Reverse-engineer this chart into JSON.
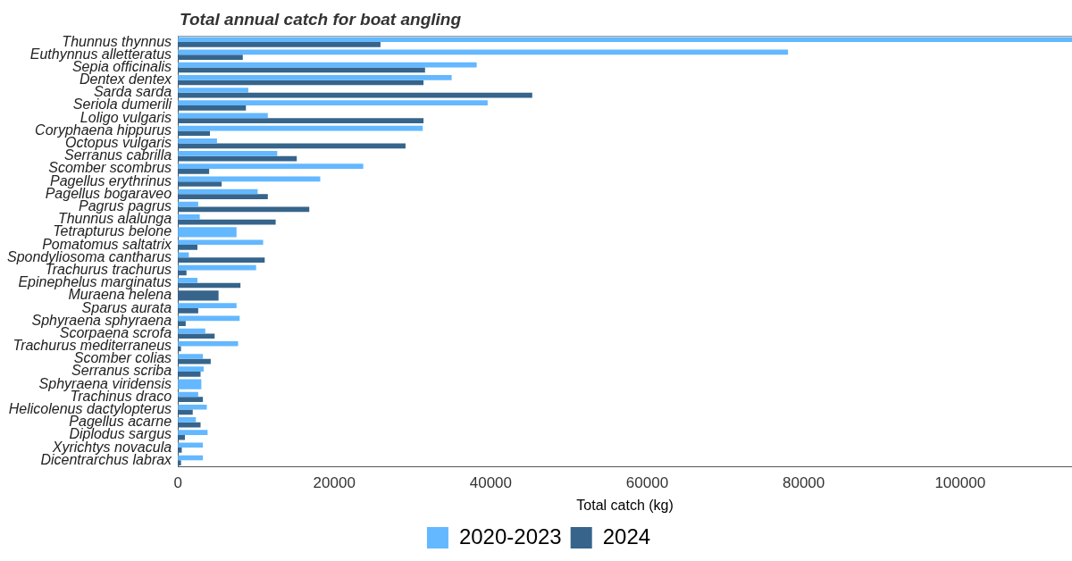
{
  "chart_data": {
    "type": "bar",
    "orientation": "horizontal",
    "title": "Total annual catch for boat angling",
    "xlabel": "Total catch (kg)",
    "categories": [
      "Thunnus thynnus",
      "Euthynnus alletteratus",
      "Sepia officinalis",
      "Dentex dentex",
      "Sarda sarda",
      "Seriola dumerili",
      "Loligo vulgaris",
      "Coryphaena hippurus",
      "Octopus vulgaris",
      "Serranus cabrilla",
      "Scomber scombrus",
      "Pagellus erythrinus",
      "Pagellus bogaraveo",
      "Pagrus pagrus",
      "Thunnus alalunga",
      "Tetrapturus belone",
      "Pomatomus saltatrix",
      "Spondyliosoma cantharus",
      "Trachurus trachurus",
      "Epinephelus marginatus",
      "Muraena helena",
      "Sparus aurata",
      "Sphyraena sphyraena",
      "Scorpaena scrofa",
      "Trachurus mediterraneus",
      "Scomber colias",
      "Serranus scriba",
      "Sphyraena viridensis",
      "Trachinus draco",
      "Helicolenus dactylopterus",
      "Pagellus acarne",
      "Diplodus sargus",
      "Xyrichtys novacula",
      "Dicentrarchus labrax"
    ],
    "series": [
      {
        "name": "2020-2023",
        "color": "#63b8ff",
        "values": [
          114300,
          78000,
          38200,
          35000,
          9000,
          39600,
          11500,
          31300,
          5000,
          12700,
          23700,
          18200,
          10200,
          2600,
          2800,
          7500,
          10900,
          1400,
          10000,
          2500,
          null,
          7500,
          7900,
          3500,
          7700,
          3200,
          3300,
          3000,
          2600,
          3700,
          2300,
          3800,
          3200,
          3200
        ]
      },
      {
        "name": "2024",
        "color": "#36648b",
        "values": [
          25900,
          8300,
          31600,
          31400,
          45300,
          8700,
          31400,
          4100,
          29100,
          15200,
          4000,
          5600,
          11500,
          16800,
          12500,
          null,
          2500,
          11100,
          1100,
          8000,
          5200,
          2600,
          1000,
          4700,
          400,
          4200,
          2900,
          null,
          3200,
          1900,
          2900,
          900,
          500,
          400
        ]
      }
    ],
    "xlim": [
      0,
      114300
    ],
    "xticks": [
      0,
      20000,
      40000,
      60000,
      80000,
      100000
    ],
    "grid": false,
    "legend": "bottom"
  }
}
